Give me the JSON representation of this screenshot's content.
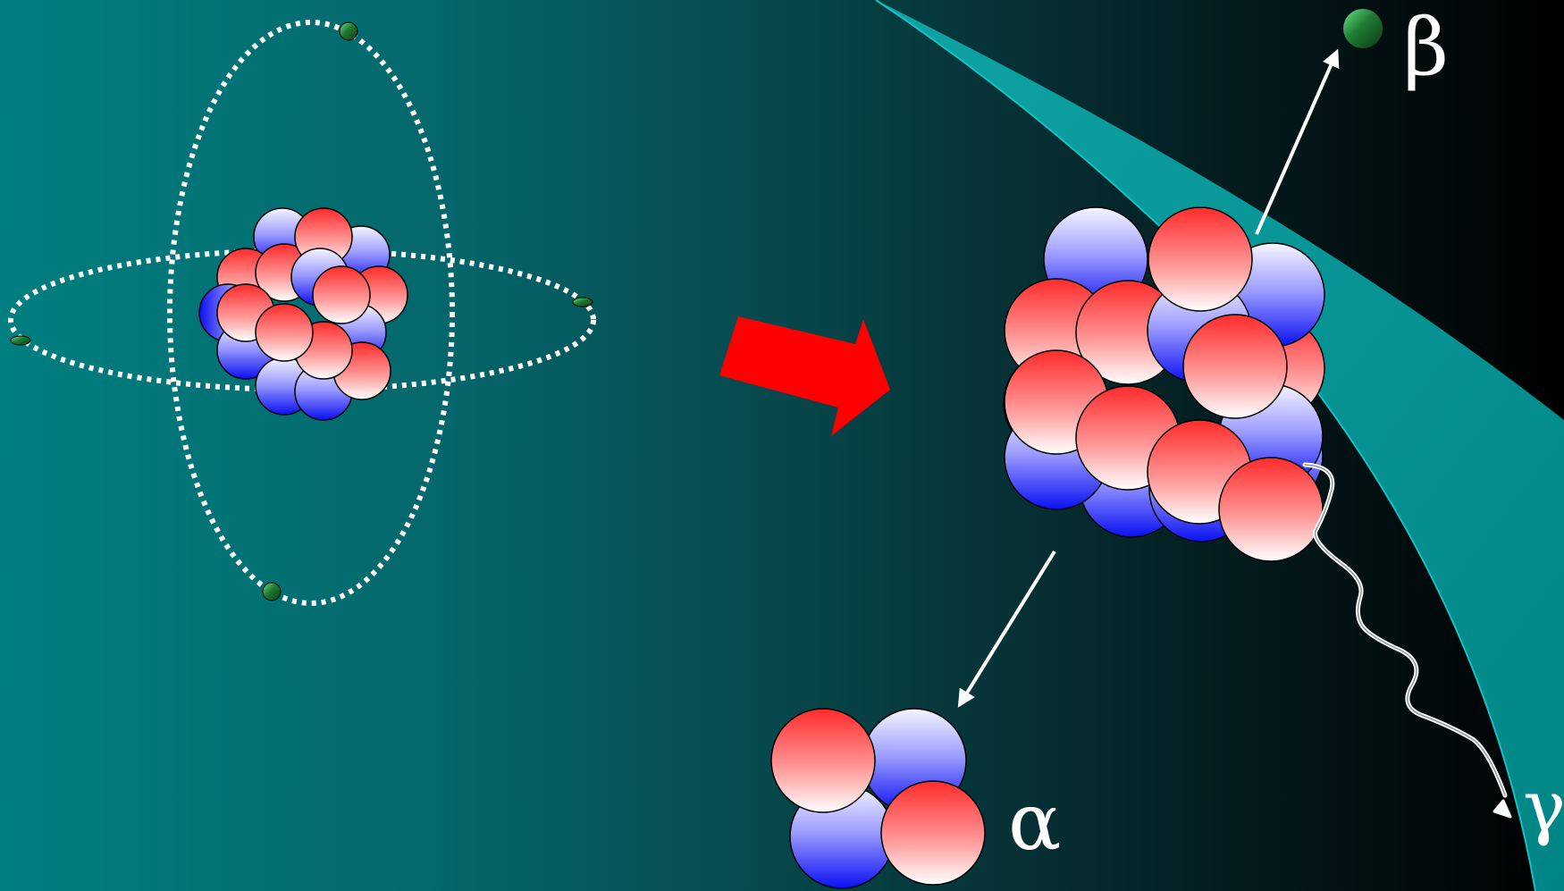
{
  "labels": {
    "beta": "β",
    "alpha": "α",
    "gamma": "γ"
  },
  "colors": {
    "background_left": "#007f80",
    "background_right": "#000000",
    "proton_red": "#ff0000",
    "neutron_blue": "#0000ff",
    "electron_green": "#1f7a32",
    "arrow_red": "#ff0000",
    "orbit_white": "#ffffff",
    "accent_band": "#008b8b"
  },
  "icons": {
    "atom": "atom-diagram-icon",
    "transition": "red-arrow-icon",
    "decaying_nucleus": "nucleus-icon",
    "alpha_particle": "alpha-particle-icon",
    "beta_particle": "electron-icon",
    "gamma_ray": "wavy-arrow-icon"
  }
}
